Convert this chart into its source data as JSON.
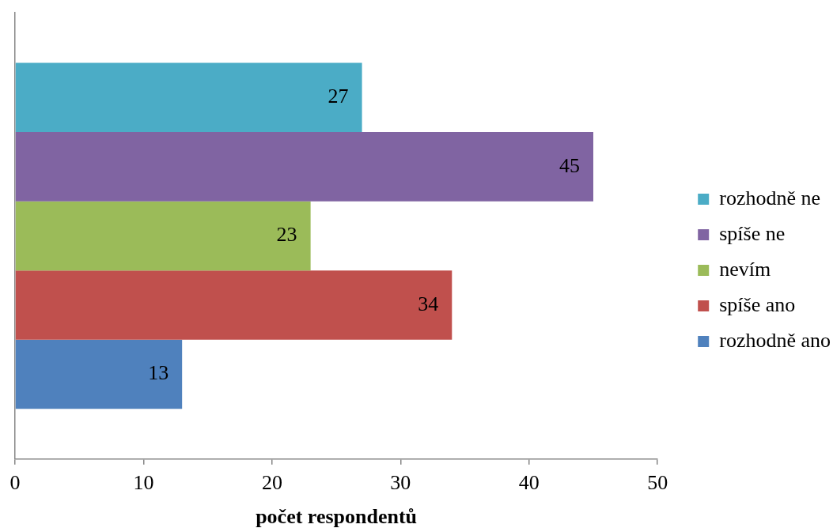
{
  "chart_data": {
    "type": "bar",
    "orientation": "horizontal",
    "categories": [
      null
    ],
    "series": [
      {
        "name": "rozhodně ne",
        "color": "#4bacc6",
        "values": [
          27
        ]
      },
      {
        "name": "spíše ne",
        "color": "#8064a2",
        "values": [
          45
        ]
      },
      {
        "name": "nevím",
        "color": "#9bbb59",
        "values": [
          23
        ]
      },
      {
        "name": "spíše ano",
        "color": "#c0504d",
        "values": [
          34
        ]
      },
      {
        "name": "rozhodně ano",
        "color": "#4f81bd",
        "values": [
          13
        ]
      }
    ],
    "xlabel": "počet respondentů",
    "xlim": [
      0,
      50
    ],
    "xticks": [
      0,
      10,
      20,
      30,
      40,
      50
    ],
    "grid": false,
    "legend": "right",
    "data_labels": true
  }
}
